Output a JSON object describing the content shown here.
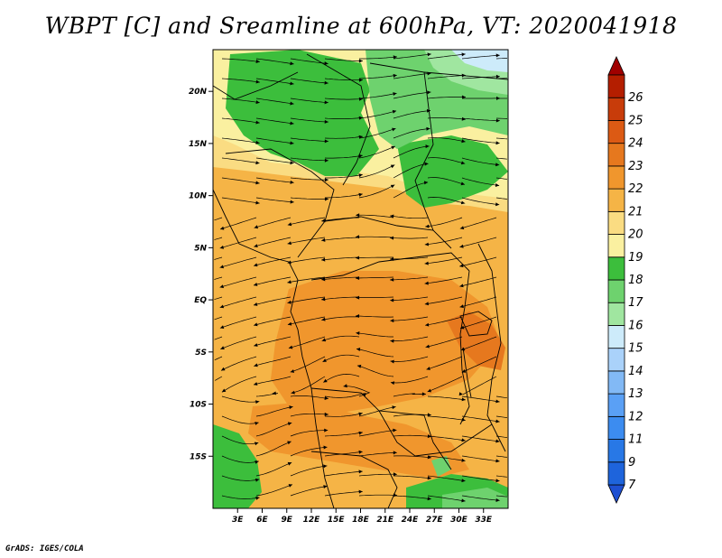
{
  "title": "WBPT [C] and Sreamline at 600hPa, VT: 2020041918",
  "credit": "GrADS: IGES/COLA",
  "map": {
    "variable": "WBPT [C]",
    "overlay": "Sreamline",
    "level": "600hPa",
    "valid_time": "2020041918",
    "lat_range": [
      -20,
      24
    ],
    "lon_range": [
      0,
      36
    ],
    "lat_ticks": [
      {
        "value": 20,
        "label": "20N"
      },
      {
        "value": 15,
        "label": "15N"
      },
      {
        "value": 10,
        "label": "10N"
      },
      {
        "value": 5,
        "label": "5N"
      },
      {
        "value": 0,
        "label": "EQ"
      },
      {
        "value": -5,
        "label": "5S"
      },
      {
        "value": -10,
        "label": "10S"
      },
      {
        "value": -15,
        "label": "15S"
      }
    ],
    "lon_ticks": [
      {
        "value": 3,
        "label": "3E"
      },
      {
        "value": 6,
        "label": "6E"
      },
      {
        "value": 9,
        "label": "9E"
      },
      {
        "value": 12,
        "label": "12E"
      },
      {
        "value": 15,
        "label": "15E"
      },
      {
        "value": 18,
        "label": "18E"
      },
      {
        "value": 21,
        "label": "21E"
      },
      {
        "value": 24,
        "label": "24E"
      },
      {
        "value": 27,
        "label": "27E"
      },
      {
        "value": 30,
        "label": "30E"
      },
      {
        "value": 33,
        "label": "33E"
      }
    ]
  },
  "colorbar": {
    "levels": [
      "7",
      "9",
      "11",
      "12",
      "13",
      "14",
      "15",
      "16",
      "17",
      "18",
      "19",
      "20",
      "21",
      "22",
      "23",
      "24",
      "25",
      "26"
    ],
    "colors": [
      "#1e64dc",
      "#2878e6",
      "#3c8cf0",
      "#5aa0f5",
      "#82b9f5",
      "#aad2fa",
      "#cdebfa",
      "#a0e6a0",
      "#6ed26e",
      "#3cbe3c",
      "#faf0a0",
      "#fadc82",
      "#f5b446",
      "#f0962d",
      "#e6781e",
      "#dc5a14",
      "#c83c0a",
      "#b41e00"
    ],
    "under_color": "#1e50d2",
    "over_color": "#a00000"
  }
}
